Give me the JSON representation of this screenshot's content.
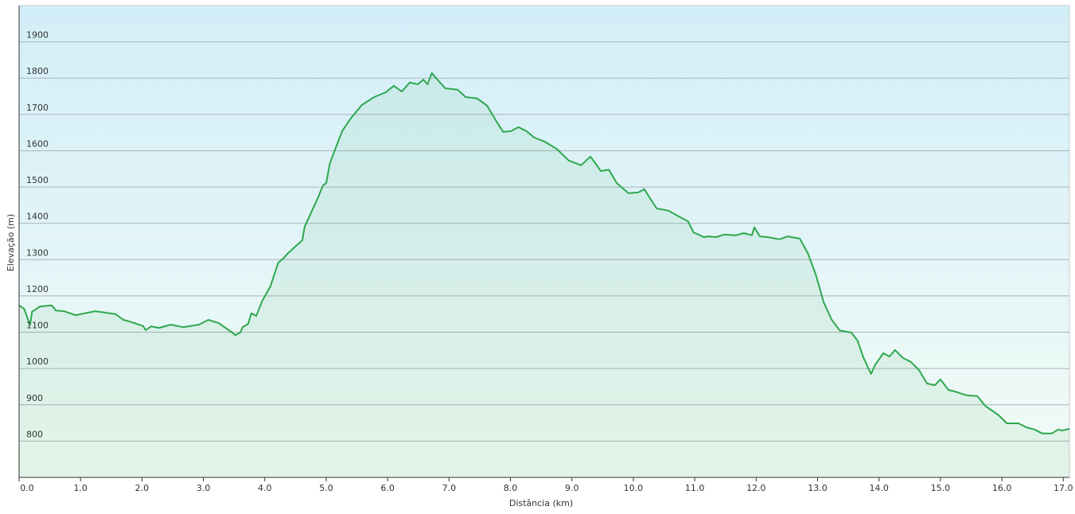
{
  "chart_data": {
    "type": "area",
    "x_label": "Distância  (km)",
    "y_label": "Elevação (m)",
    "color": "#2ea84e",
    "grid": true,
    "xlim": [
      0,
      17.1
    ],
    "ylim": [
      700,
      2000
    ],
    "xticks": [
      {
        "value": 0,
        "label": "0.0"
      },
      {
        "value": 1,
        "label": "1.0"
      },
      {
        "value": 2,
        "label": "2.0"
      },
      {
        "value": 3,
        "label": "3.0"
      },
      {
        "value": 4,
        "label": "4.0"
      },
      {
        "value": 5,
        "label": "5.0"
      },
      {
        "value": 6,
        "label": "6.0"
      },
      {
        "value": 7,
        "label": "7.0"
      },
      {
        "value": 8,
        "label": "8.0"
      },
      {
        "value": 9,
        "label": "9.0"
      },
      {
        "value": 10,
        "label": "10.0"
      },
      {
        "value": 11,
        "label": "11.0"
      },
      {
        "value": 12,
        "label": "12.0"
      },
      {
        "value": 13,
        "label": "13.0"
      },
      {
        "value": 14,
        "label": "14.0"
      },
      {
        "value": 15,
        "label": "15.0"
      },
      {
        "value": 16,
        "label": "16.0"
      },
      {
        "value": 17,
        "label": "17.0"
      }
    ],
    "yticks": [
      800,
      900,
      1000,
      1100,
      1200,
      1300,
      1400,
      1500,
      1600,
      1700,
      1800,
      1900
    ],
    "x": [
      0,
      0.08,
      0.16,
      0.18,
      0.21,
      0.34,
      0.53,
      0.6,
      0.73,
      0.92,
      1.24,
      1.57,
      1.7,
      1.83,
      2.02,
      2.06,
      2.15,
      2.28,
      2.47,
      2.67,
      2.93,
      3.08,
      3.25,
      3.47,
      3.52,
      3.6,
      3.64,
      3.73,
      3.78,
      3.86,
      3.96,
      4.09,
      4.22,
      4.3,
      4.38,
      4.51,
      4.61,
      4.65,
      4.74,
      4.87,
      4.95,
      5.0,
      5.06,
      5.16,
      5.26,
      5.39,
      5.58,
      5.78,
      5.97,
      6.1,
      6.23,
      6.36,
      6.49,
      6.58,
      6.65,
      6.72,
      6.81,
      6.94,
      7.14,
      7.27,
      7.46,
      7.62,
      7.75,
      7.88,
      8.01,
      8.13,
      8.26,
      8.39,
      8.56,
      8.76,
      8.95,
      9.15,
      9.3,
      9.38,
      9.47,
      9.6,
      9.73,
      9.92,
      10.08,
      10.18,
      10.28,
      10.38,
      10.57,
      10.76,
      10.89,
      10.98,
      11.15,
      11.22,
      11.35,
      11.48,
      11.67,
      11.8,
      11.93,
      11.97,
      12.06,
      12.19,
      12.38,
      12.51,
      12.71,
      12.84,
      12.97,
      13.1,
      13.23,
      13.36,
      13.55,
      13.65,
      13.74,
      13.81,
      13.87,
      13.94,
      14.07,
      14.17,
      14.26,
      14.39,
      14.52,
      14.65,
      14.78,
      14.91,
      15.0,
      15.13,
      15.23,
      15.43,
      15.6,
      15.73,
      15.95,
      16.08,
      16.27,
      16.4,
      16.53,
      16.66,
      16.81,
      16.92,
      16.98,
      17.1
    ],
    "values": [
      1174,
      1165,
      1128,
      1121,
      1156,
      1171,
      1174,
      1160,
      1158,
      1147,
      1158,
      1150,
      1134,
      1128,
      1117,
      1106,
      1116,
      1112,
      1121,
      1114,
      1121,
      1134,
      1125,
      1099,
      1092,
      1099,
      1114,
      1123,
      1152,
      1145,
      1187,
      1226,
      1292,
      1303,
      1318,
      1338,
      1353,
      1391,
      1424,
      1472,
      1505,
      1511,
      1566,
      1610,
      1654,
      1687,
      1726,
      1748,
      1761,
      1779,
      1763,
      1788,
      1783,
      1796,
      1783,
      1814,
      1796,
      1772,
      1768,
      1748,
      1744,
      1724,
      1687,
      1652,
      1654,
      1665,
      1654,
      1636,
      1625,
      1604,
      1573,
      1560,
      1584,
      1566,
      1544,
      1548,
      1511,
      1483,
      1485,
      1494,
      1467,
      1441,
      1435,
      1417,
      1406,
      1375,
      1362,
      1364,
      1362,
      1369,
      1367,
      1373,
      1367,
      1389,
      1364,
      1362,
      1356,
      1364,
      1358,
      1318,
      1259,
      1182,
      1134,
      1105,
      1099,
      1077,
      1033,
      1007,
      985,
      1011,
      1042,
      1033,
      1051,
      1029,
      1018,
      996,
      959,
      954,
      970,
      941,
      937,
      926,
      924,
      897,
      871,
      849,
      849,
      838,
      832,
      821,
      821,
      832,
      829,
      834
    ]
  }
}
